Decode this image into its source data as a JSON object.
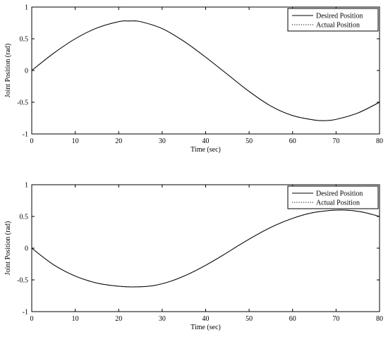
{
  "chart_data": [
    {
      "type": "line",
      "title": "",
      "xlabel": "Time (sec)",
      "ylabel": "Joint Position (rad)",
      "xlim": [
        0,
        80
      ],
      "ylim": [
        -1,
        1
      ],
      "xticks": [
        0,
        10,
        20,
        30,
        40,
        50,
        60,
        70,
        80
      ],
      "yticks": [
        -1,
        -0.5,
        0,
        0.5,
        1
      ],
      "grid": false,
      "legend_position": "top-right",
      "series": [
        {
          "name": "Desired Position",
          "style": "solid",
          "x": [
            0,
            5,
            10,
            15,
            20,
            22.5,
            25,
            30,
            35,
            40,
            45,
            50,
            55,
            60,
            65,
            67.5,
            70,
            75,
            80
          ],
          "y": [
            0,
            0.27,
            0.5,
            0.67,
            0.77,
            0.78,
            0.77,
            0.66,
            0.46,
            0.21,
            -0.06,
            -0.33,
            -0.56,
            -0.71,
            -0.78,
            -0.79,
            -0.77,
            -0.67,
            -0.5
          ]
        },
        {
          "name": "Actual Position",
          "style": "dotted",
          "x": [
            0,
            5,
            10,
            15,
            20,
            22.5,
            25,
            30,
            35,
            40,
            45,
            50,
            55,
            60,
            65,
            67.5,
            70,
            75,
            80
          ],
          "y": [
            0,
            0.27,
            0.5,
            0.67,
            0.77,
            0.78,
            0.77,
            0.66,
            0.46,
            0.21,
            -0.06,
            -0.33,
            -0.56,
            -0.71,
            -0.78,
            -0.79,
            -0.77,
            -0.67,
            -0.5
          ]
        }
      ]
    },
    {
      "type": "line",
      "title": "",
      "xlabel": "Time (sec)",
      "ylabel": "Joint Position (rad)",
      "xlim": [
        0,
        80
      ],
      "ylim": [
        -1,
        1
      ],
      "xticks": [
        0,
        10,
        20,
        30,
        40,
        50,
        60,
        70,
        80
      ],
      "yticks": [
        -1,
        -0.5,
        0,
        0.5,
        1
      ],
      "grid": false,
      "legend_position": "top-right",
      "series": [
        {
          "name": "Desired Position",
          "style": "solid",
          "x": [
            0,
            5,
            10,
            15,
            20,
            24,
            28,
            32,
            36,
            40,
            44,
            48,
            52,
            56,
            60,
            64,
            68,
            72,
            76,
            80
          ],
          "y": [
            0,
            -0.26,
            -0.44,
            -0.55,
            -0.6,
            -0.61,
            -0.59,
            -0.52,
            -0.41,
            -0.27,
            -0.11,
            0.06,
            0.22,
            0.36,
            0.47,
            0.55,
            0.59,
            0.6,
            0.57,
            0.5
          ]
        },
        {
          "name": "Actual Position",
          "style": "dotted",
          "x": [
            0,
            5,
            10,
            15,
            20,
            24,
            28,
            32,
            36,
            40,
            44,
            48,
            52,
            56,
            60,
            64,
            68,
            72,
            76,
            80
          ],
          "y": [
            0,
            -0.26,
            -0.44,
            -0.55,
            -0.6,
            -0.61,
            -0.59,
            -0.52,
            -0.41,
            -0.27,
            -0.11,
            0.06,
            0.22,
            0.36,
            0.47,
            0.55,
            0.59,
            0.6,
            0.57,
            0.5
          ]
        }
      ]
    }
  ]
}
